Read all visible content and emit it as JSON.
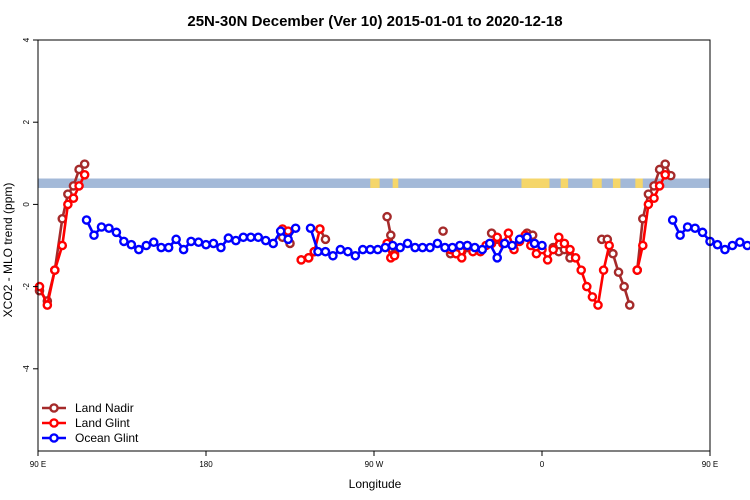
{
  "chart_data": {
    "type": "line",
    "title": "25N-30N December (Ver 10)   2015-01-01 to 2020-12-18",
    "xlabel": "Longitude",
    "ylabel": "XCO2 - MLO trend (ppm)",
    "xlim": [
      90,
      450
    ],
    "ylim": [
      -6,
      4
    ],
    "x_ticks": [
      {
        "value": 90,
        "label": "90 E"
      },
      {
        "value": 180,
        "label": "180"
      },
      {
        "value": 270,
        "label": "90 W"
      },
      {
        "value": 360,
        "label": "0"
      },
      {
        "value": 450,
        "label": "90 E"
      },
      {
        "value": 540,
        "label": "180"
      }
    ],
    "y_ticks": [
      {
        "value": -4,
        "label": "-4"
      },
      {
        "value": -2,
        "label": "-2"
      },
      {
        "value": 0,
        "label": "0"
      },
      {
        "value": 2,
        "label": "2"
      },
      {
        "value": 4,
        "label": "4"
      }
    ],
    "grid": false,
    "legend_position": "bottom-left",
    "land_mask_band": {
      "y_range": [
        0.4,
        0.63
      ],
      "land_color": "#f5d66a",
      "ocean_color": "#a3b9d8",
      "land_segments": [
        [
          268,
          273
        ],
        [
          280,
          283
        ],
        [
          349,
          364
        ],
        [
          370,
          374
        ],
        [
          387,
          392
        ],
        [
          398,
          402
        ],
        [
          410,
          414
        ]
      ]
    },
    "series": [
      {
        "name": "Land Nadir",
        "color": "#a52a2a",
        "segments": [
          {
            "x": [
              90.8,
              95,
              99,
              103,
              106,
              109,
              112,
              115
            ],
            "y": [
              -2.1,
              -2.35,
              -1.6,
              -0.35,
              0.25,
              0.45,
              0.85,
              0.98
            ]
          },
          {
            "x": [
              221,
              225
            ],
            "y": [
              -0.8,
              -0.95
            ]
          },
          {
            "x": [
              231,
              235,
              238
            ],
            "y": [
              -1.35,
              -1.3,
              -1.15
            ]
          },
          {
            "x": [
              241,
              244
            ],
            "y": [
              -0.6,
              -0.85
            ]
          },
          {
            "x": [
              277,
              279,
              281
            ],
            "y": [
              -0.3,
              -0.75,
              -1.2
            ]
          },
          {
            "x": [
              307
            ],
            "y": [
              -0.65
            ]
          },
          {
            "x": [
              311,
              314,
              317,
              320
            ],
            "y": [
              -1.2,
              -1.2,
              -1.15,
              -1.05
            ]
          },
          {
            "x": [
              333,
              336
            ],
            "y": [
              -0.7,
              -0.85
            ]
          },
          {
            "x": [
              352,
              355
            ],
            "y": [
              -0.7,
              -0.75
            ]
          },
          {
            "x": [
              366,
              369,
              372,
              375
            ],
            "y": [
              -1.05,
              -1.15,
              -1.1,
              -1.3
            ]
          },
          {
            "x": [
              392,
              395
            ],
            "y": [
              -0.85,
              -0.85
            ]
          },
          {
            "x": [
              398,
              401,
              404,
              407
            ],
            "y": [
              -1.2,
              -1.65,
              -2.0,
              -2.45
            ]
          },
          {
            "x": [
              411,
              414,
              417,
              420,
              423,
              426,
              429
            ],
            "y": [
              -1.6,
              -0.35,
              0.25,
              0.45,
              0.85,
              0.98,
              0.7
            ]
          }
        ]
      },
      {
        "name": "Land Glint",
        "color": "#ff0000",
        "segments": [
          {
            "x": [
              90.8,
              95,
              99,
              103,
              106,
              109,
              112,
              115
            ],
            "y": [
              -2.0,
              -2.45,
              -1.6,
              -1.0,
              0.0,
              0.15,
              0.45,
              0.72
            ]
          },
          {
            "x": [
              221,
              224
            ],
            "y": [
              -0.6,
              -0.65
            ]
          },
          {
            "x": [
              231,
              235,
              238,
              241
            ],
            "y": [
              -1.35,
              -1.3,
              -1.15,
              -0.6
            ]
          },
          {
            "x": [
              277,
              279,
              281
            ],
            "y": [
              -0.95,
              -1.3,
              -1.25
            ]
          },
          {
            "x": [
              311,
              314,
              317,
              320,
              323,
              327,
              330,
              333,
              336,
              339,
              342,
              345,
              348,
              351,
              354,
              357,
              360,
              363,
              366,
              369,
              372,
              375,
              378,
              381,
              384,
              387,
              390,
              393,
              396
            ],
            "y": [
              -1.1,
              -1.2,
              -1.3,
              -1.0,
              -1.15,
              -1.15,
              -1.0,
              -0.95,
              -0.8,
              -0.95,
              -0.7,
              -1.1,
              -0.9,
              -0.75,
              -1.0,
              -1.2,
              -1.1,
              -1.35,
              -1.1,
              -0.8,
              -0.95,
              -1.1,
              -1.3,
              -1.6,
              -2.0,
              -2.25,
              -2.45,
              -1.6,
              -1.0
            ]
          },
          {
            "x": [
              411,
              414,
              417,
              420,
              423,
              426
            ],
            "y": [
              -1.6,
              -1.0,
              0.0,
              0.15,
              0.45,
              0.72
            ]
          }
        ]
      },
      {
        "name": "Ocean Glint",
        "color": "#0000ff",
        "segments": [
          {
            "x": [
              116,
              120,
              124,
              128,
              132,
              136,
              140,
              144,
              148,
              152,
              156,
              160,
              164,
              168,
              172,
              176,
              180,
              184,
              188,
              192,
              196,
              200,
              204,
              208,
              212,
              216,
              220,
              224,
              228
            ],
            "y": [
              -0.38,
              -0.75,
              -0.55,
              -0.58,
              -0.68,
              -0.9,
              -0.98,
              -1.1,
              -1.0,
              -0.92,
              -1.05,
              -1.05,
              -0.85,
              -1.1,
              -0.9,
              -0.92,
              -0.98,
              -0.95,
              -1.05,
              -0.82,
              -0.88,
              -0.8,
              -0.8,
              -0.8,
              -0.88,
              -0.95,
              -0.65,
              -0.85,
              -0.58
            ]
          },
          {
            "x": [
              236,
              240,
              244,
              248,
              252,
              256,
              260,
              264,
              268,
              272,
              276,
              280,
              284,
              288,
              292,
              296,
              300,
              304,
              308,
              312,
              316,
              320,
              324,
              328,
              332,
              336,
              340,
              344,
              348,
              352,
              356,
              360
            ],
            "y": [
              -0.58,
              -1.15,
              -1.15,
              -1.25,
              -1.1,
              -1.15,
              -1.25,
              -1.1,
              -1.1,
              -1.1,
              -1.05,
              -1.0,
              -1.05,
              -0.95,
              -1.05,
              -1.05,
              -1.05,
              -0.95,
              -1.05,
              -1.05,
              -1.0,
              -1.0,
              -1.05,
              -1.1,
              -0.95,
              -1.3,
              -0.95,
              -1.0,
              -0.85,
              -0.8,
              -0.95,
              -1.0
            ]
          },
          {
            "x": [
              430,
              434,
              438,
              442,
              446,
              450,
              454,
              458,
              462,
              466,
              470,
              474
            ],
            "y": [
              -0.38,
              -0.75,
              -0.55,
              -0.58,
              -0.68,
              -0.9,
              -0.98,
              -1.1,
              -1.0,
              -0.92,
              -1.0,
              -1.08
            ]
          }
        ]
      }
    ]
  }
}
